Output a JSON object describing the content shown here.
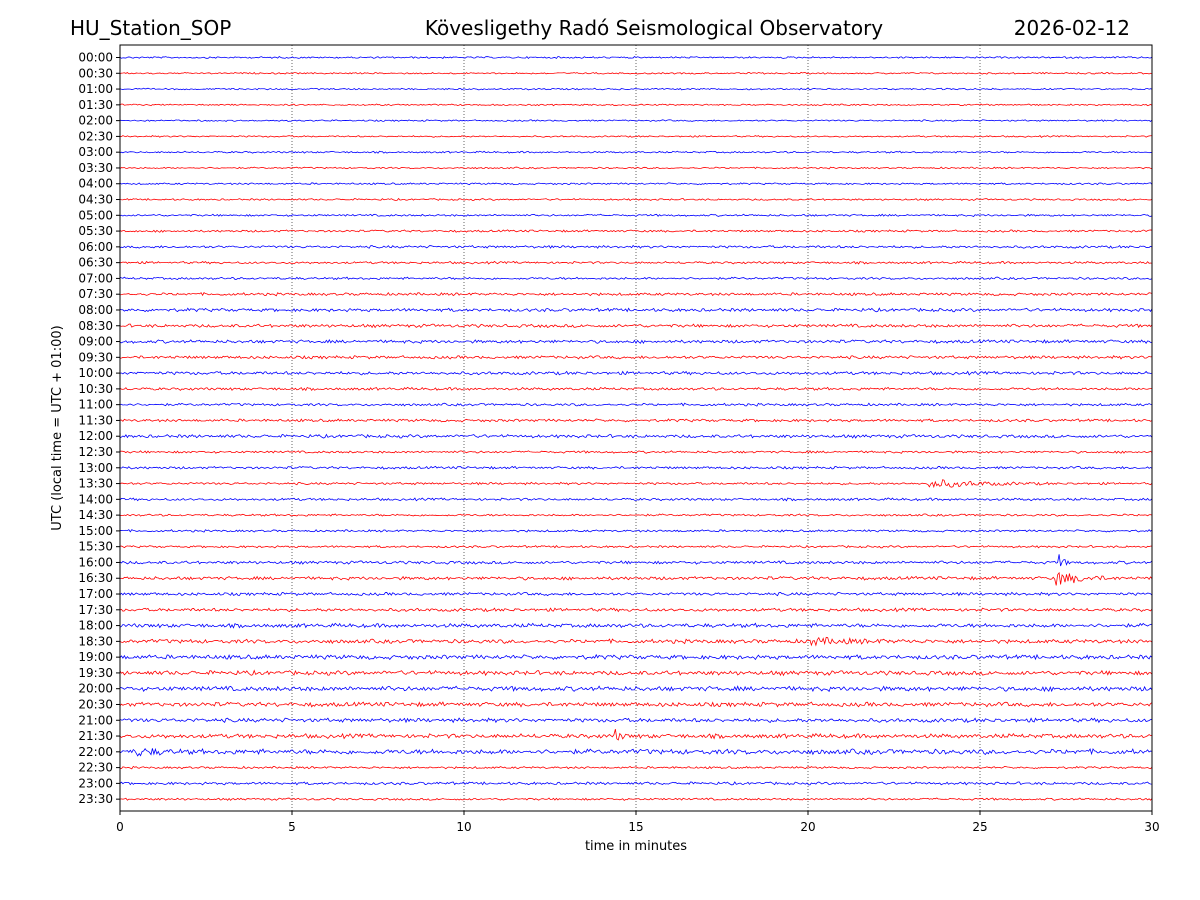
{
  "header": {
    "station": "HU_Station_SOP",
    "observatory": "Köveslig­ethy Radó Seismological Observatory",
    "date": "2026-02-12"
  },
  "chart_data": {
    "type": "line",
    "title": "Köveslig­ethy Radó Seismological Observatory",
    "xlabel": "time in minutes",
    "ylabel": "UTC (local time = UTC + 01:00)",
    "xlim": [
      0,
      30
    ],
    "x_ticks": [
      "0",
      "5",
      "10",
      "15",
      "20",
      "25",
      "30"
    ],
    "grid": "vertical dotted at x ticks",
    "trace_colors": [
      "#0000ff",
      "#ff0000"
    ],
    "rows": [
      "00:00",
      "00:30",
      "01:00",
      "01:30",
      "02:00",
      "02:30",
      "03:00",
      "03:30",
      "04:00",
      "04:30",
      "05:00",
      "05:30",
      "06:00",
      "06:30",
      "07:00",
      "07:30",
      "08:00",
      "08:30",
      "09:00",
      "09:30",
      "10:00",
      "10:30",
      "11:00",
      "11:30",
      "12:00",
      "12:30",
      "13:00",
      "13:30",
      "14:00",
      "14:30",
      "15:00",
      "15:30",
      "16:00",
      "16:30",
      "17:00",
      "17:30",
      "18:00",
      "18:30",
      "19:00",
      "19:30",
      "20:00",
      "20:30",
      "21:00",
      "21:30",
      "22:00",
      "22:30",
      "23:00",
      "23:30"
    ],
    "noise_level": [
      0.25,
      0.22,
      0.22,
      0.22,
      0.22,
      0.22,
      0.25,
      0.22,
      0.25,
      0.25,
      0.28,
      0.3,
      0.35,
      0.32,
      0.32,
      0.38,
      0.45,
      0.45,
      0.45,
      0.42,
      0.45,
      0.38,
      0.35,
      0.38,
      0.45,
      0.32,
      0.35,
      0.32,
      0.35,
      0.3,
      0.3,
      0.3,
      0.42,
      0.45,
      0.42,
      0.45,
      0.55,
      0.55,
      0.6,
      0.6,
      0.65,
      0.6,
      0.55,
      0.6,
      0.7,
      0.3,
      0.38,
      0.3
    ],
    "events": [
      {
        "row": "13:30",
        "start_min": 23.5,
        "end_min": 27.0,
        "amplitude": 1.5
      },
      {
        "row": "16:30",
        "start_min": 27.2,
        "end_min": 29.0,
        "amplitude": 2.5
      },
      {
        "row": "16:00",
        "start_min": 27.3,
        "end_min": 27.6,
        "amplitude": 2.8
      },
      {
        "row": "18:30",
        "start_min": 20.0,
        "end_min": 23.0,
        "amplitude": 1.1
      },
      {
        "row": "21:30",
        "start_min": 14.4,
        "end_min": 14.8,
        "amplitude": 2.0
      },
      {
        "row": "22:00",
        "start_min": 0.5,
        "end_min": 2.0,
        "amplitude": 1.2
      }
    ]
  }
}
